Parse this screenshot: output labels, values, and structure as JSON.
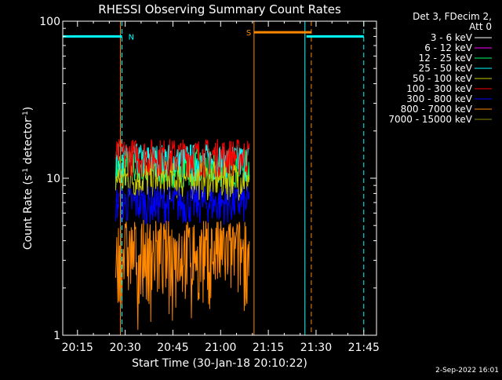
{
  "chart_data": {
    "type": "line",
    "title": "RHESSI Observing Summary Count Rates",
    "xlabel": "Start Time (30-Jan-18 20:10:22)",
    "ylabel_main": "Count Rate (s",
    "ylabel_sup1": "-1",
    "ylabel_mid": " detector",
    "ylabel_sup2": "-1",
    "ylabel_end": ")",
    "y_scale": "log",
    "ylim": [
      1,
      100
    ],
    "xlim": [
      "20:10:22",
      "21:49:00"
    ],
    "x_ticks": [
      "20:15",
      "20:30",
      "20:45",
      "21:00",
      "21:15",
      "21:30",
      "21:45"
    ],
    "y_ticks": [
      "1",
      "10",
      "100"
    ],
    "legend_position": "right",
    "legend_header": [
      "Det 3, FDecim 2,",
      "Att 0"
    ],
    "series": [
      {
        "name": "3 - 6 keV",
        "color": "#ffffff",
        "level": 0
      },
      {
        "name": "6 - 12 keV",
        "color": "#ff00ff",
        "level": 0
      },
      {
        "name": "12 - 25 keV",
        "color": "#00ff66",
        "level": 12
      },
      {
        "name": "25 - 50 keV",
        "color": "#00ffff",
        "level": 13
      },
      {
        "name": "50 - 100 keV",
        "color": "#cccc00",
        "level": 10
      },
      {
        "name": "100 - 300 keV",
        "color": "#ff0000",
        "level": 14
      },
      {
        "name": "300 - 800 keV",
        "color": "#0000ff",
        "level": 7
      },
      {
        "name": "800 - 7000 keV",
        "color": "#ff8800",
        "level": 3.5
      },
      {
        "name": "7000 - 15000 keV",
        "color": "#888800",
        "level": 0
      }
    ],
    "data_start": "20:27:00",
    "data_end": "21:09:00",
    "annotations": [
      {
        "label": "N",
        "color": "#00ffff",
        "segments": [
          [
            "20:10:22",
            "20:29:00"
          ],
          [
            "21:27:00",
            "21:45:00"
          ]
        ],
        "value": 80
      },
      {
        "label": "S",
        "color": "#ff8800",
        "segments": [
          [
            "21:10:30",
            "21:28:30"
          ]
        ],
        "value": 85
      }
    ],
    "night_lines": [
      "20:10:22",
      "21:26:30"
    ],
    "night_dashed": [
      "20:29:00",
      "21:45:00"
    ],
    "saa_lines": [
      "20:28:30",
      "21:10:30"
    ],
    "saa_dashed": [
      "21:28:30"
    ]
  },
  "footer": {
    "date": "2-Sep-2022 16:01"
  }
}
